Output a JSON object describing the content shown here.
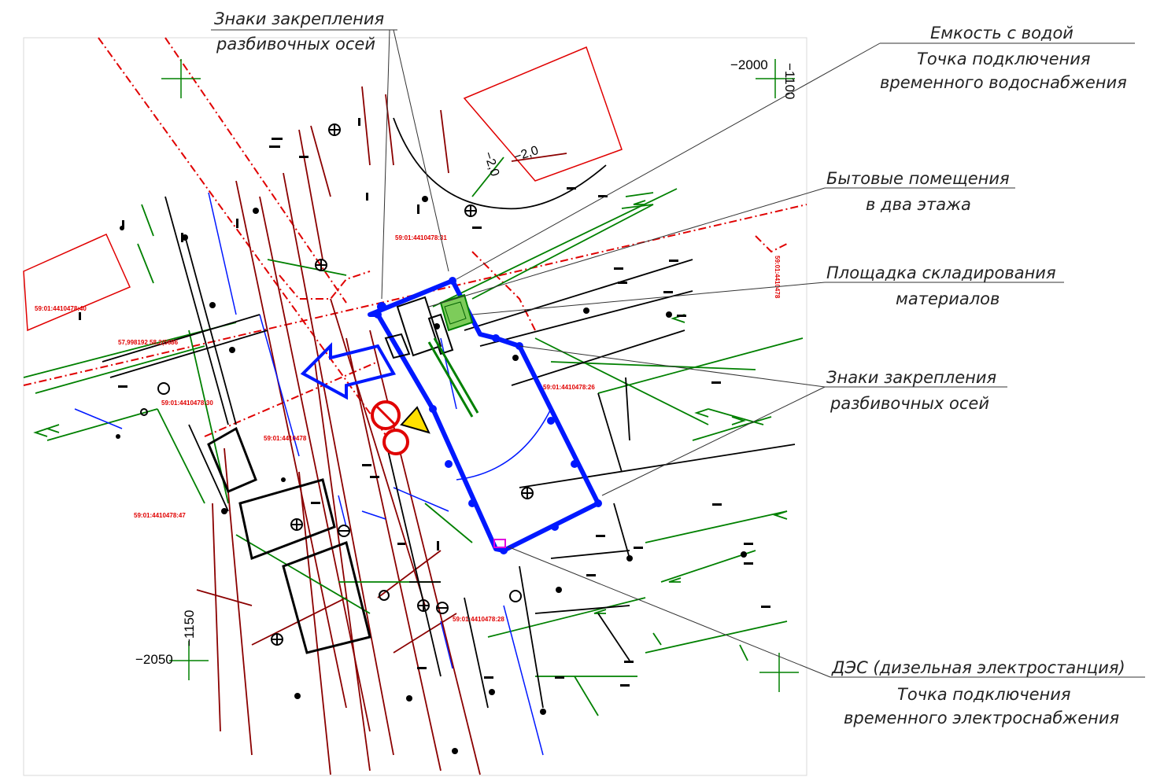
{
  "callouts": {
    "axes_top": [
      "Знаки закрепления",
      "разбивочных осей"
    ],
    "water": [
      "Емкость с водой",
      "Точка подключения",
      "временного водоснабжения"
    ],
    "cabins": [
      "Бытовые помещения",
      "в два этажа"
    ],
    "storage": [
      "Площадка складирования",
      "материалов"
    ],
    "axes_right": [
      "Знаки закрепления",
      "разбивочных осей"
    ],
    "generator": [
      "ДЭС (дизельная электростанция)",
      "Точка подключения",
      "временного электроснабжения"
    ]
  },
  "grid_marks": {
    "top_x": "−2000",
    "top_y": "−1100",
    "bottom_x": "−2050",
    "bottom_y": "−1150"
  },
  "cadastral": {
    "c31": "59:01:4410478:31",
    "c40": "59:01:4410478:40",
    "c26": "59:01:4410478:26",
    "c30": "59:01:4410478:30",
    "c478": "59:01:4410478",
    "c47": "59:01:4410478:47",
    "c28": "59:01:4410478:28",
    "c478r": "59:01:4410478",
    "coord_pair": "57,998192  58,2(5686"
  },
  "levels": {
    "l1": "−2,0",
    "l2": "−2,0"
  },
  "colors": {
    "red": "#e00000",
    "darkred": "#8b0000",
    "green": "#008000",
    "blue": "#0018ff",
    "black": "#000000"
  }
}
